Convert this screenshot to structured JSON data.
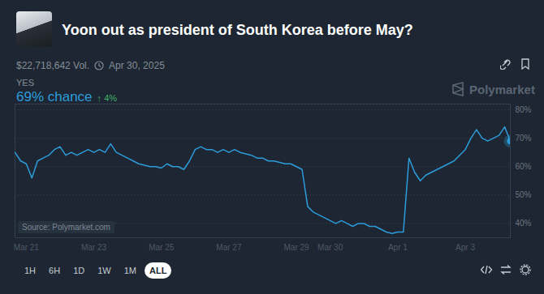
{
  "header": {
    "title": "Yoon out as president of South Korea before May?",
    "volume": "$22,718,642 Vol.",
    "end_date": "Apr 30, 2025",
    "outcome": "YES",
    "chance": "69% chance",
    "change": "↑ 4%",
    "watermark": "Polymarket"
  },
  "chart_data": {
    "type": "line",
    "categories": [
      null,
      null,
      "Mar 21",
      null,
      null,
      null,
      null,
      null,
      null,
      null,
      null,
      null,
      null,
      null,
      "Mar 23",
      null,
      null,
      null,
      null,
      null,
      null,
      null,
      null,
      null,
      null,
      null,
      "Mar 25",
      null,
      null,
      null,
      null,
      null,
      null,
      null,
      null,
      null,
      null,
      null,
      "Mar 27",
      null,
      null,
      null,
      null,
      null,
      null,
      null,
      null,
      null,
      null,
      null,
      "Mar 29",
      null,
      null,
      null,
      null,
      null,
      "Mar 30",
      null,
      null,
      null,
      null,
      null,
      null,
      null,
      null,
      null,
      null,
      null,
      "Apr 1",
      null,
      null,
      null,
      null,
      null,
      null,
      null,
      null,
      null,
      null,
      null,
      "Apr 3",
      null,
      null,
      null,
      null,
      null,
      null,
      null,
      null
    ],
    "values": [
      65,
      62,
      61,
      56,
      62,
      63,
      64,
      66,
      67,
      64,
      65,
      64,
      65,
      66,
      65,
      66,
      65,
      68,
      65,
      64,
      63,
      62,
      61,
      60.5,
      60,
      60,
      59.5,
      61,
      60,
      60,
      59,
      62,
      66,
      67,
      66,
      66,
      65,
      66,
      65,
      66,
      65,
      64.5,
      64,
      63,
      63,
      62,
      62,
      61.5,
      61,
      61,
      60,
      59,
      46,
      44,
      43,
      42,
      41,
      40,
      41,
      40,
      39,
      40,
      40,
      39,
      39,
      38,
      37,
      36.5,
      37,
      37,
      63,
      58,
      55,
      57,
      58,
      59,
      60,
      61,
      62,
      64,
      66,
      70,
      73,
      70,
      69,
      70,
      71,
      74,
      69
    ],
    "color": "#2d9cdb",
    "ylim": [
      35,
      82
    ],
    "yticks": [
      {
        "value": 40,
        "label": "40%"
      },
      {
        "value": 50,
        "label": "50%"
      },
      {
        "value": 60,
        "label": "60%"
      },
      {
        "value": 70,
        "label": "70%"
      },
      {
        "value": 80,
        "label": "80%"
      }
    ],
    "grid": true,
    "marker": "end",
    "annotations": [
      "Source: Polymarket.com"
    ]
  },
  "controls": {
    "ranges": [
      "1H",
      "6H",
      "1D",
      "1W",
      "1M",
      "ALL"
    ],
    "selected": "ALL"
  }
}
